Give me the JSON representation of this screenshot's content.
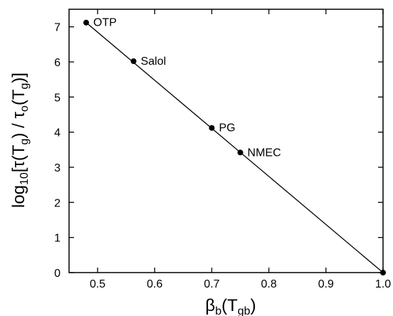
{
  "chart_data": {
    "type": "scatter",
    "xlim": [
      0.45,
      1.0
    ],
    "ylim": [
      0,
      7.5
    ],
    "xticks": [
      0.5,
      0.6,
      0.7,
      0.8,
      0.9,
      1.0
    ],
    "yticks": [
      0,
      1,
      2,
      3,
      4,
      5,
      6,
      7
    ],
    "xtick_labels": [
      "0.5",
      "0.6",
      "0.7",
      "0.8",
      "0.9",
      "1.0"
    ],
    "ytick_labels": [
      "0",
      "1",
      "2",
      "3",
      "4",
      "5",
      "6",
      "7"
    ],
    "xlabel": {
      "base": "β",
      "sub1": "b",
      "mid": "(T",
      "sub2": "gb",
      "end": ")"
    },
    "ylabel": {
      "pre": "log",
      "sub1": "10",
      "a": "[τ(T",
      "sub2": "g",
      "b": ") / τ",
      "sub3": "o",
      "c": "(T",
      "sub4": "g",
      "d": ")]"
    },
    "points": [
      {
        "label": "OTP",
        "x": 0.48,
        "y": 7.12
      },
      {
        "label": "Salol",
        "x": 0.563,
        "y": 6.02
      },
      {
        "label": "PG",
        "x": 0.7,
        "y": 4.12
      },
      {
        "label": "NMEC",
        "x": 0.75,
        "y": 3.42
      },
      {
        "label": "",
        "x": 1.0,
        "y": 0
      }
    ],
    "fit_line": {
      "x": [
        0.48,
        1.0
      ],
      "y": [
        7.12,
        0
      ]
    },
    "grid": false,
    "legend": "none"
  }
}
